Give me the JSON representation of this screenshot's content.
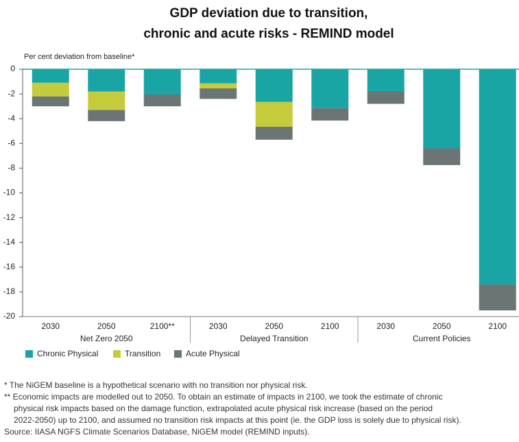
{
  "chart_data": {
    "type": "bar",
    "title": [
      "GDP deviation due to transition,",
      "chronic and acute risks - REMIND model"
    ],
    "y_label": "Per cent deviation from baseline*",
    "groups": [
      {
        "name": "Net Zero 2050",
        "categories": [
          "2030",
          "2050",
          "2100**"
        ]
      },
      {
        "name": "Delayed Transition",
        "categories": [
          "2030",
          "2050",
          "2100"
        ]
      },
      {
        "name": "Current Policies",
        "categories": [
          "2030",
          "2050",
          "2100"
        ]
      }
    ],
    "stacked": true,
    "series": [
      {
        "name": "Chronic Physical",
        "color": "#1aa5a5",
        "values": [
          -1.1,
          -1.8,
          -2.05,
          -1.15,
          -2.65,
          -3.15,
          -1.8,
          -6.4,
          -17.4
        ]
      },
      {
        "name": "Transition",
        "color": "#c5cb3b",
        "values": [
          -1.1,
          -1.5,
          0,
          -0.4,
          -2.0,
          0,
          0,
          0,
          0
        ]
      },
      {
        "name": "Acute Physical",
        "color": "#6b7575",
        "values": [
          -0.8,
          -0.9,
          -0.95,
          -0.85,
          -1.05,
          -1.0,
          -1.0,
          -1.35,
          -2.1
        ]
      }
    ],
    "ylim": [
      -20,
      0
    ],
    "yticks": [
      0,
      -2,
      -4,
      -6,
      -8,
      -10,
      -12,
      -14,
      -16,
      -18,
      -20
    ],
    "notes": [
      "* The NiGEM baseline is a hypothetical scenario with no transition nor physical risk.",
      "** Economic impacts are modelled out to 2050. To obtain an estimate of impacts in 2100, we took the estimate of chronic",
      "physical risk impacts based on the damage function, extrapolated acute physical risk increase (based on the period",
      "2022-2050) up to 2100, and assumed no transition risk impacts at this point (ie. the GDP loss is solely due to physical risk).",
      "Source: IIASA NGFS Climate Scenarios Database, NiGEM model (REMIND inputs)."
    ]
  }
}
